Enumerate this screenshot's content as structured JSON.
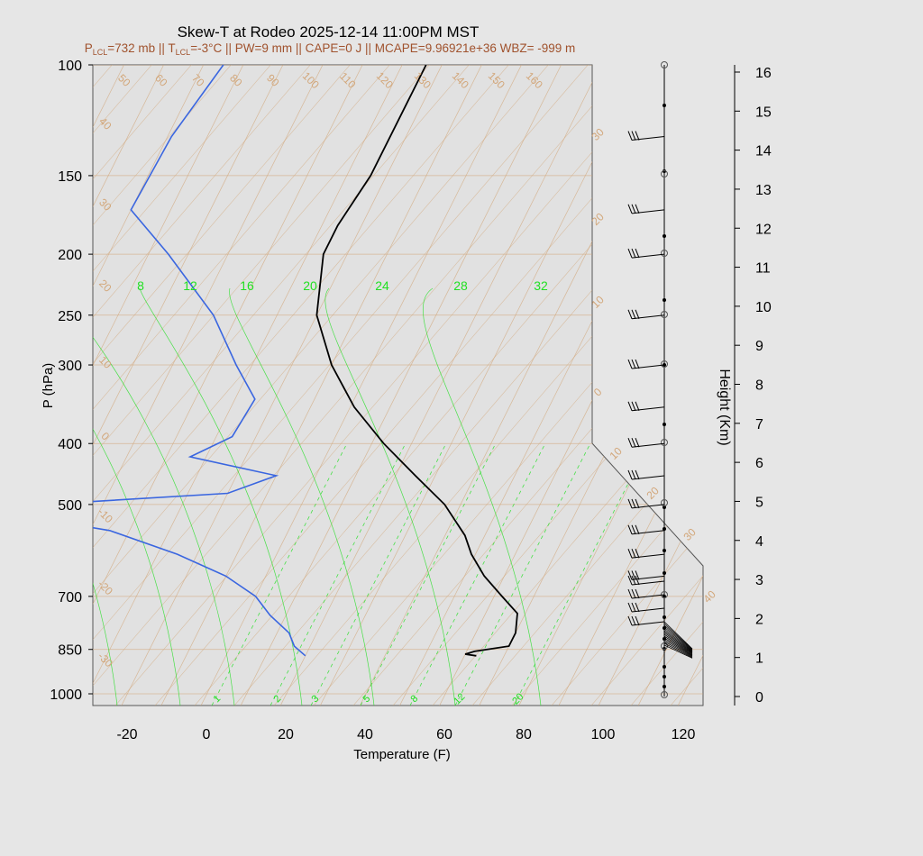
{
  "title": "Skew-T at Rodeo 2025-12-14 11:00PM MST",
  "subtitle": {
    "p_lcl": "P",
    "p_lcl_sub": "LCL",
    "p_lcl_val": "=732 mb || T",
    "t_lcl_sub": "LCL",
    "t_lcl_val": "=-3°C || PW=9 mm || CAPE=0 J || MCAPE=9.96921e+36 WBZ= -999 m"
  },
  "colors": {
    "background": "#e6e6e6",
    "plot_bg": "#e1e1e1",
    "temperature": "#000000",
    "dewpoint": "#3a66e0",
    "isotherm_adiabat": "#d2a679",
    "mixing_ratio": "#22e022",
    "subtitle": "#a0522d"
  },
  "chart_data": {
    "type": "skew-t",
    "title": "Skew-T at Rodeo 2025-12-14 11:00PM MST",
    "xlabel": "Temperature (F)",
    "ylabel": "P (hPa)",
    "y2label": "Height (Km)",
    "xlim": [
      -28,
      125
    ],
    "ylim": [
      1050,
      100
    ],
    "x_ticks": [
      "-20",
      "0",
      "20",
      "40",
      "60",
      "80",
      "100",
      "120"
    ],
    "p_ticks": [
      "100",
      "150",
      "200",
      "250",
      "300",
      "400",
      "500",
      "700",
      "850",
      "1000"
    ],
    "height_ticks": [
      "0",
      "1",
      "2",
      "3",
      "4",
      "5",
      "6",
      "7",
      "8",
      "9",
      "10",
      "11",
      "12",
      "13",
      "14",
      "15",
      "16"
    ],
    "isotherm_labels_top": [
      "50",
      "60",
      "70",
      "80",
      "90",
      "100",
      "110",
      "120",
      "130",
      "140",
      "150",
      "160"
    ],
    "isotherm_labels_left": [
      "40",
      "30",
      "20",
      "10",
      "0",
      "-10",
      "-20",
      "-30"
    ],
    "isotherm_labels_right": [
      "30",
      "20",
      "10",
      "0",
      "10",
      "20",
      "30",
      "40"
    ],
    "mixing_ratio_labels": [
      "8",
      "12",
      "16",
      "20",
      "24",
      "28",
      "32"
    ],
    "mixing_ratio_bottom_labels": [
      "1",
      "2",
      "3",
      "5",
      "8",
      "12",
      "20"
    ],
    "series": [
      {
        "name": "Temperature",
        "points": [
          {
            "p": 870,
            "t": 63
          },
          {
            "p": 865,
            "t": 60
          },
          {
            "p": 856,
            "t": 62
          },
          {
            "p": 840,
            "t": 70
          },
          {
            "p": 800,
            "t": 70
          },
          {
            "p": 745,
            "t": 68
          },
          {
            "p": 700,
            "t": 62
          },
          {
            "p": 650,
            "t": 55
          },
          {
            "p": 600,
            "t": 49
          },
          {
            "p": 560,
            "t": 45
          },
          {
            "p": 500,
            "t": 36
          },
          {
            "p": 450,
            "t": 25
          },
          {
            "p": 400,
            "t": 13
          },
          {
            "p": 350,
            "t": 1
          },
          {
            "p": 300,
            "t": -10
          },
          {
            "p": 250,
            "t": -20
          },
          {
            "p": 200,
            "t": -26
          },
          {
            "p": 180,
            "t": -26
          },
          {
            "p": 150,
            "t": -24
          },
          {
            "p": 120,
            "t": -24
          },
          {
            "p": 100,
            "t": -24
          }
        ]
      },
      {
        "name": "Dewpoint",
        "points": [
          {
            "p": 870,
            "t": 20
          },
          {
            "p": 840,
            "t": 16
          },
          {
            "p": 800,
            "t": 13
          },
          {
            "p": 750,
            "t": 6
          },
          {
            "p": 700,
            "t": 0
          },
          {
            "p": 650,
            "t": -10
          },
          {
            "p": 600,
            "t": -25
          },
          {
            "p": 550,
            "t": -45
          },
          {
            "p": 520,
            "t": -70
          },
          {
            "p": 500,
            "t": -65
          },
          {
            "p": 480,
            "t": -20
          },
          {
            "p": 450,
            "t": -10
          },
          {
            "p": 420,
            "t": -34
          },
          {
            "p": 390,
            "t": -26
          },
          {
            "p": 340,
            "t": -25
          },
          {
            "p": 300,
            "t": -34
          },
          {
            "p": 250,
            "t": -46
          },
          {
            "p": 200,
            "t": -65
          },
          {
            "p": 170,
            "t": -80
          },
          {
            "p": 130,
            "t": -79
          },
          {
            "p": 100,
            "t": -75
          }
        ]
      }
    ],
    "wind_barb_pressures": [
      850,
      800,
      750,
      700,
      650,
      600,
      550,
      500,
      450,
      400,
      350,
      300,
      250,
      200,
      170,
      130
    ]
  }
}
